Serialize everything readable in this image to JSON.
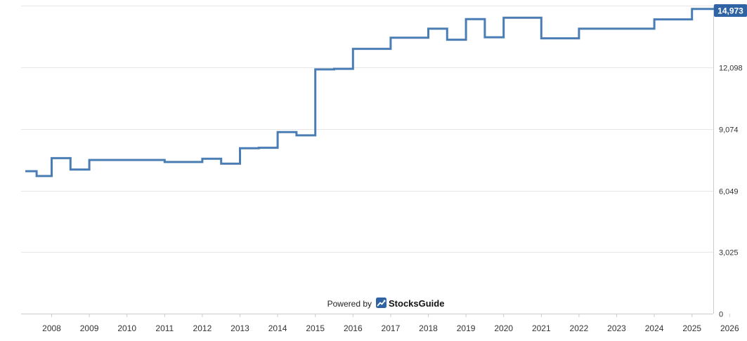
{
  "chart_data": {
    "type": "line",
    "step": true,
    "x_unit": "year",
    "xlim": [
      2007.3,
      2025.7
    ],
    "ylim": [
      0,
      15135
    ],
    "x_ticks": [
      "2008",
      "2009",
      "2010",
      "2011",
      "2012",
      "2013",
      "2014",
      "2015",
      "2016",
      "2017",
      "2018",
      "2019",
      "2020",
      "2021",
      "2022",
      "2023",
      "2024",
      "2025",
      "2026"
    ],
    "y_ticks": [
      "0",
      "3,025",
      "6,049",
      "9,074",
      "12,098"
    ],
    "grid": true,
    "series_color": "#4a7db4",
    "last_value_label": "14,973",
    "points": [
      [
        2007.3,
        7000
      ],
      [
        2007.6,
        6760
      ],
      [
        2008.0,
        7640
      ],
      [
        2008.5,
        7080
      ],
      [
        2009.0,
        7550
      ],
      [
        2011.0,
        7450
      ],
      [
        2012.0,
        7610
      ],
      [
        2012.5,
        7370
      ],
      [
        2013.0,
        8130
      ],
      [
        2013.5,
        8150
      ],
      [
        2014.0,
        8920
      ],
      [
        2014.5,
        8760
      ],
      [
        2015.0,
        12000
      ],
      [
        2015.5,
        12030
      ],
      [
        2016.0,
        13010
      ],
      [
        2017.0,
        13560
      ],
      [
        2018.0,
        14000
      ],
      [
        2018.5,
        13460
      ],
      [
        2019.0,
        14470
      ],
      [
        2019.5,
        13580
      ],
      [
        2020.0,
        14540
      ],
      [
        2021.0,
        13530
      ],
      [
        2022.0,
        14000
      ],
      [
        2024.0,
        14460
      ],
      [
        2025.0,
        14973
      ],
      [
        2025.7,
        14973
      ]
    ]
  },
  "branding": {
    "powered_by": "Powered by",
    "brand": "StocksGuide"
  },
  "colors": {
    "line": "#4a7db4",
    "badge": "#2f63a3",
    "grid": "#e6e6e6"
  }
}
